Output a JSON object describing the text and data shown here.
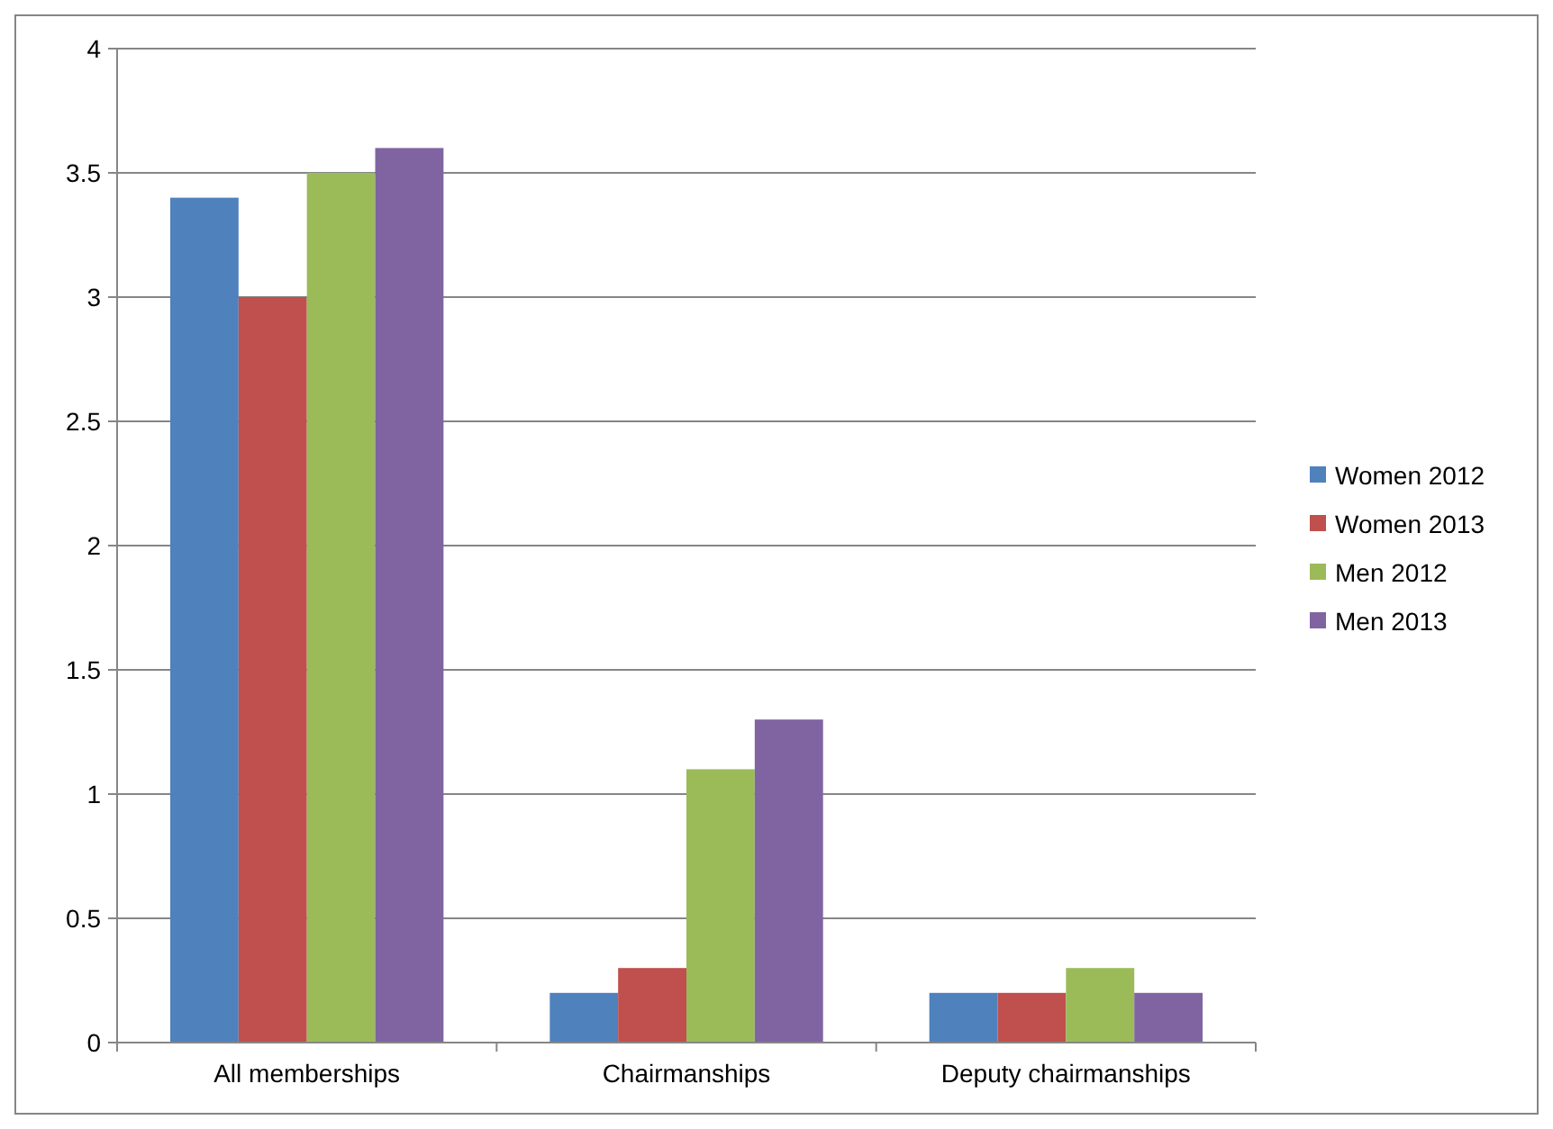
{
  "chart_data": {
    "type": "bar",
    "categories": [
      "All memberships",
      "Chairmanships",
      "Deputy chairmanships"
    ],
    "series": [
      {
        "name": "Women 2012",
        "color": "#4f81bd",
        "values": [
          3.4,
          0.2,
          0.2
        ]
      },
      {
        "name": "Women 2013",
        "color": "#c0504d",
        "values": [
          3.0,
          0.3,
          0.2
        ]
      },
      {
        "name": "Men 2012",
        "color": "#9bbb59",
        "values": [
          3.5,
          1.1,
          0.3
        ]
      },
      {
        "name": "Men 2013",
        "color": "#8064a2",
        "values": [
          3.6,
          1.3,
          0.2
        ]
      }
    ],
    "ylim": [
      0,
      4
    ],
    "yticks": [
      0,
      0.5,
      1,
      1.5,
      2,
      2.5,
      3,
      3.5,
      4
    ],
    "grid": "y",
    "legend": "right"
  }
}
